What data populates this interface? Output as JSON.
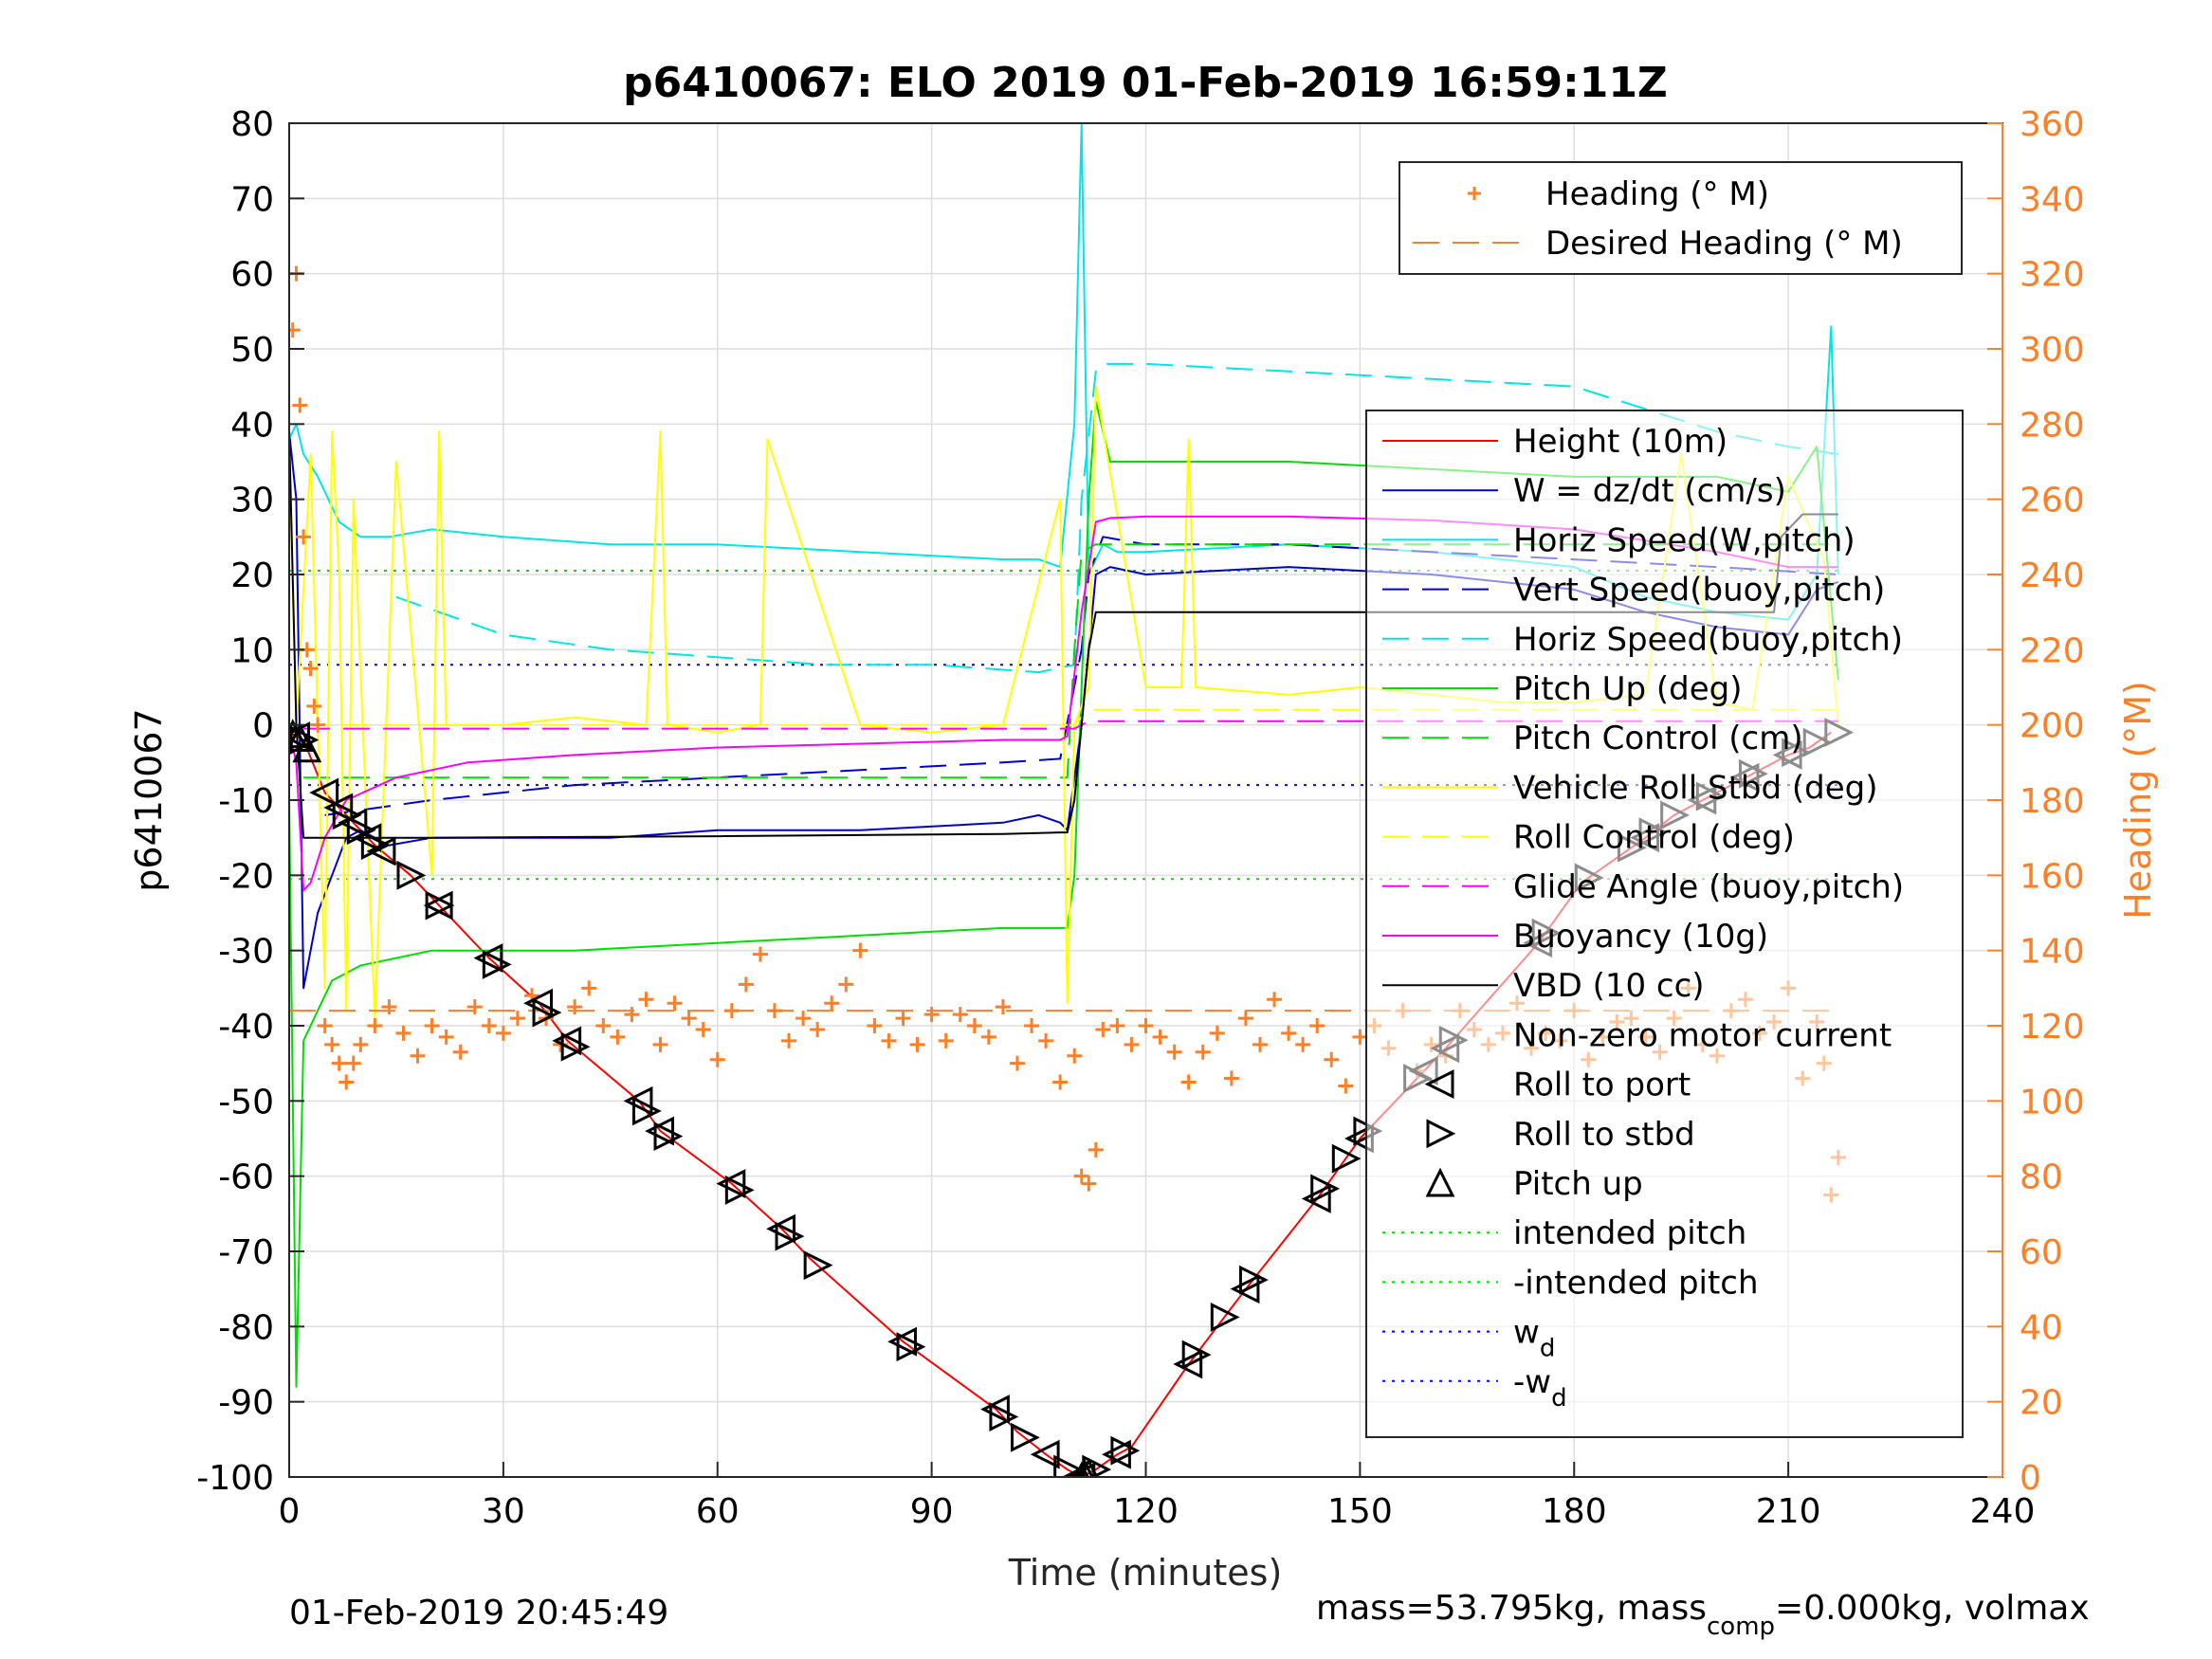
{
  "chart_data": {
    "type": "line",
    "title": "p6410067: ELO 2019 01-Feb-2019 16:59:11Z",
    "xlabel": "Time (minutes)",
    "ylabel": "p6410067",
    "y2label": "Heading (°M)",
    "xlim": [
      0,
      240
    ],
    "ylim": [
      -100,
      80
    ],
    "y2lim": [
      0,
      360
    ],
    "xticks": [
      0,
      30,
      60,
      90,
      120,
      150,
      180,
      210,
      240
    ],
    "yticks": [
      80,
      70,
      60,
      50,
      40,
      30,
      20,
      10,
      0,
      -10,
      -20,
      -30,
      -40,
      -50,
      -60,
      -70,
      -80,
      -90,
      -100
    ],
    "y2ticks": [
      360,
      340,
      320,
      300,
      280,
      260,
      240,
      220,
      200,
      180,
      160,
      140,
      120,
      100,
      80,
      60,
      40,
      20,
      0
    ],
    "grid": true,
    "footer_left": "01-Feb-2019 20:45:49",
    "footer_right": {
      "pre": "mass=53.795kg, mass",
      "sub": "comp",
      "post": "=0.000kg, volmax"
    },
    "legend_heading": [
      {
        "label": "Heading (° M)",
        "color": "#ff7f27",
        "style": "plus"
      },
      {
        "label": "Desired Heading (° M)",
        "color": "#ff7f27",
        "style": "dashed"
      }
    ],
    "legend_main": [
      {
        "label": "Height (10m)",
        "color": "#ff0000",
        "style": "solid"
      },
      {
        "label": "W = dz/dt (cm/s)",
        "color": "#0000cc",
        "style": "solid"
      },
      {
        "label": "Horiz Speed(W,pitch)",
        "color": "#00e5e5",
        "style": "solid"
      },
      {
        "label": "Vert Speed(buoy,pitch)",
        "color": "#0000cc",
        "style": "dashed"
      },
      {
        "label": "Horiz Speed(buoy,pitch)",
        "color": "#00e5e5",
        "style": "dashed"
      },
      {
        "label": "Pitch Up (deg)",
        "color": "#00dd00",
        "style": "solid"
      },
      {
        "label": "Pitch Control (cm)",
        "color": "#00dd00",
        "style": "dashed"
      },
      {
        "label": "Vehicle Roll Stbd (deg)",
        "color": "#ffff00",
        "style": "solid"
      },
      {
        "label": "Roll Control (deg)",
        "color": "#ffff00",
        "style": "dashed"
      },
      {
        "label": "Glide Angle (buoy,pitch)",
        "color": "#ff00ff",
        "style": "dashed"
      },
      {
        "label": "Buoyancy (10g)",
        "color": "#ff00ff",
        "style": "solid"
      },
      {
        "label": "VBD (10 cc)",
        "color": "#000000",
        "style": "solid"
      },
      {
        "label": "Non-zero motor current",
        "color": "#000000",
        "style": "none"
      },
      {
        "label": "Roll to port",
        "color": "#000000",
        "style": "tri-left"
      },
      {
        "label": "Roll to stbd",
        "color": "#000000",
        "style": "tri-right"
      },
      {
        "label": "Pitch up",
        "color": "#000000",
        "style": "tri-up"
      },
      {
        "label": "intended pitch",
        "color": "#00dd00",
        "style": "dotted"
      },
      {
        "label": "-intended pitch",
        "color": "#00dd00",
        "style": "dotted"
      },
      {
        "label": "w",
        "sub": "d",
        "color": "#0000ff",
        "style": "dotted"
      },
      {
        "label": "-w",
        "sub": "d",
        "color": "#0000ff",
        "style": "dotted"
      }
    ],
    "reference_lines": {
      "intended_pitch": 20.5,
      "neg_intended_pitch": -20.5,
      "w_d": 8,
      "neg_w_d": -8,
      "desired_heading": 124
    },
    "series": [
      {
        "name": "Height (10m)",
        "color": "#ff0000",
        "x": [
          0,
          2,
          5,
          8,
          12,
          17,
          21,
          28,
          35,
          39,
          49,
          52,
          62,
          69,
          73,
          86,
          99,
          102,
          106,
          109,
          111,
          113,
          116,
          118,
          126,
          130,
          134,
          144,
          147,
          150,
          158,
          162,
          175,
          181,
          187,
          190,
          194,
          198,
          200,
          204,
          210,
          213,
          216
        ],
        "y": [
          -1,
          -2,
          -9,
          -12,
          -16,
          -20,
          -24,
          -31,
          -37,
          -42,
          -50,
          -54,
          -61,
          -67,
          -71,
          -82,
          -91,
          -94,
          -97,
          -99,
          -100,
          -99,
          -97,
          -96,
          -85,
          -80,
          -75,
          -63,
          -59,
          -55,
          -47,
          -43,
          -29,
          -21,
          -17,
          -15,
          -12,
          -10,
          -9,
          -7,
          -4,
          -3,
          -1
        ]
      },
      {
        "name": "W = dz/dt (cm/s)",
        "color": "#0000cc",
        "x": [
          0,
          1,
          2,
          4,
          6,
          8,
          10,
          14,
          20,
          30,
          45,
          60,
          80,
          100,
          105,
          108,
          109,
          111,
          113,
          115,
          120,
          140,
          160,
          180,
          190,
          200,
          210,
          214,
          217
        ],
        "y": [
          39,
          30,
          -35,
          -25,
          -20,
          -15,
          -14,
          -16,
          -15,
          -15,
          -15,
          -14,
          -14,
          -13,
          -12,
          -13,
          -14,
          0,
          20,
          21,
          20,
          21,
          20,
          18,
          15,
          13,
          12,
          18,
          19
        ]
      },
      {
        "name": "Horiz Speed(W,pitch)",
        "color": "#00e5e5",
        "x": [
          0,
          1,
          2,
          4,
          7,
          10,
          14,
          20,
          30,
          45,
          60,
          80,
          100,
          105,
          108,
          110,
          111,
          112,
          114,
          116,
          120,
          140,
          160,
          180,
          190,
          200,
          210,
          214,
          216,
          217
        ],
        "y": [
          38,
          40,
          36,
          33,
          27,
          25,
          25,
          26,
          25,
          24,
          24,
          23,
          22,
          22,
          21,
          40,
          80,
          20,
          24,
          23,
          23,
          24,
          23,
          21,
          17,
          15,
          14,
          20,
          53,
          20
        ]
      },
      {
        "name": "Vert Speed(buoy,pitch)",
        "color": "#0000cc",
        "dashed": true,
        "x": [
          5,
          20,
          40,
          60,
          80,
          100,
          108,
          111,
          112,
          114,
          120,
          140,
          160,
          180,
          200,
          217
        ],
        "y": [
          -12,
          -10,
          -8,
          -7,
          -6,
          -5,
          -4.5,
          10,
          20,
          25,
          24,
          24,
          23,
          22,
          21,
          20
        ]
      },
      {
        "name": "Horiz Speed(buoy,pitch)",
        "color": "#00e5e5",
        "dashed": true,
        "x": [
          15,
          30,
          45,
          60,
          75,
          90,
          105,
          110,
          111,
          113,
          114,
          120,
          140,
          160,
          180,
          190,
          200,
          210,
          217
        ],
        "y": [
          17,
          12,
          10,
          9,
          8,
          8,
          7,
          8,
          30,
          47,
          48,
          48,
          47,
          46,
          45,
          42,
          39,
          37,
          36
        ]
      },
      {
        "name": "Pitch Up (deg)",
        "color": "#00dd00",
        "x": [
          0,
          1,
          2,
          4,
          6,
          10,
          20,
          40,
          60,
          80,
          100,
          108,
          109,
          110,
          112,
          113,
          115,
          120,
          140,
          160,
          180,
          200,
          210,
          214,
          217
        ],
        "y": [
          -10,
          -88,
          -42,
          -38,
          -34,
          -32,
          -30,
          -30,
          -29,
          -28,
          -27,
          -27,
          -27,
          -20,
          30,
          43,
          35,
          35,
          35,
          34,
          33,
          33,
          31,
          37,
          6
        ]
      },
      {
        "name": "Pitch Control (cm)",
        "color": "#00dd00",
        "dashed": true,
        "x": [
          2,
          20,
          40,
          60,
          80,
          100,
          109,
          110,
          111,
          113,
          120,
          160,
          200,
          217
        ],
        "y": [
          -7,
          -7,
          -7,
          -7,
          -7,
          -7,
          -7,
          10,
          23,
          24,
          24,
          24,
          24,
          24
        ]
      },
      {
        "name": "Vehicle Roll Stbd (deg)",
        "color": "#ffff00",
        "x": [
          0,
          1,
          3,
          5,
          6,
          7,
          8,
          9,
          12,
          15,
          20,
          21,
          22,
          30,
          40,
          50,
          52,
          53,
          60,
          66,
          67,
          80,
          90,
          100,
          108,
          109,
          110,
          112,
          113,
          120,
          125,
          126,
          127,
          140,
          150,
          160,
          170,
          180,
          190,
          195,
          200,
          205,
          210,
          215,
          217
        ],
        "y": [
          38,
          0,
          36,
          -35,
          39,
          20,
          -38,
          30,
          -39,
          35,
          -20,
          39,
          0,
          0,
          1,
          0,
          39,
          0,
          -1,
          0,
          38,
          0,
          -1,
          0,
          30,
          -37,
          0,
          5,
          45,
          5,
          5,
          38,
          5,
          4,
          5,
          4,
          3,
          3,
          4,
          36,
          3,
          2,
          33,
          22,
          0
        ]
      },
      {
        "name": "Roll Control (deg)",
        "color": "#ffff00",
        "dashed": true,
        "x": [
          2,
          60,
          110,
          112,
          217
        ],
        "y": [
          0,
          0,
          0,
          2,
          2
        ]
      },
      {
        "name": "Glide Angle (buoy,pitch)",
        "color": "#ff00ff",
        "dashed": true,
        "x": [
          2,
          60,
          110,
          112,
          217
        ],
        "y": [
          -0.5,
          -0.5,
          -0.5,
          0.5,
          0.5
        ]
      },
      {
        "name": "Buoyancy (10g)",
        "color": "#ff00ff",
        "x": [
          0,
          1,
          2,
          3,
          5,
          8,
          15,
          25,
          40,
          60,
          80,
          100,
          108,
          109,
          111,
          113,
          115,
          120,
          140,
          160,
          180,
          200,
          210,
          217
        ],
        "y": [
          -1,
          -5,
          -22,
          -21,
          -15,
          -10,
          -7,
          -5,
          -4,
          -3,
          -2.5,
          -2,
          -2,
          -1.5,
          15,
          27,
          27.5,
          27.7,
          27.7,
          27.2,
          26,
          23,
          21,
          21
        ]
      },
      {
        "name": "VBD (10 cc)",
        "color": "#000000",
        "x": [
          0,
          1,
          2,
          20,
          60,
          100,
          108,
          109,
          110,
          112,
          113,
          114,
          120,
          160,
          190,
          200,
          208,
          209,
          212,
          216,
          217
        ],
        "y": [
          39,
          0,
          -15,
          -15,
          -14.8,
          -14.5,
          -14.3,
          -14.3,
          -10,
          10,
          15,
          15,
          15,
          15,
          15,
          15,
          15,
          25,
          28,
          28,
          28
        ]
      },
      {
        "name": "Heading (° M)",
        "color": "#ff7f27",
        "axis": "right",
        "marker": "plus",
        "x": [
          0.5,
          1,
          1.5,
          2,
          2.5,
          3,
          3.5,
          4,
          5,
          6,
          7,
          8,
          9,
          10,
          12,
          14,
          16,
          18,
          20,
          22,
          24,
          26,
          28,
          30,
          32,
          34,
          36,
          38,
          40,
          42,
          44,
          46,
          48,
          50,
          52,
          54,
          56,
          58,
          60,
          62,
          64,
          66,
          68,
          70,
          72,
          74,
          76,
          78,
          80,
          82,
          84,
          86,
          88,
          90,
          92,
          94,
          96,
          98,
          100,
          102,
          104,
          106,
          108,
          110,
          111,
          112,
          113,
          114,
          116,
          118,
          120,
          122,
          124,
          126,
          128,
          130,
          132,
          134,
          136,
          138,
          140,
          142,
          144,
          146,
          148,
          150,
          152,
          154,
          156,
          158,
          160,
          162,
          164,
          166,
          168,
          170,
          172,
          174,
          176,
          178,
          180,
          182,
          184,
          186,
          188,
          190,
          192,
          194,
          196,
          198,
          200,
          202,
          204,
          206,
          208,
          210,
          212,
          214,
          215,
          216,
          217
        ],
        "y": [
          305,
          320,
          285,
          250,
          220,
          215,
          205,
          200,
          120,
          115,
          110,
          105,
          110,
          115,
          120,
          125,
          118,
          112,
          120,
          117,
          113,
          125,
          120,
          118,
          122,
          128,
          122,
          115,
          125,
          130,
          120,
          117,
          123,
          127,
          115,
          126,
          122,
          119,
          111,
          124,
          131,
          139,
          124,
          116,
          122,
          119,
          126,
          131,
          140,
          120,
          116,
          122,
          115,
          123,
          116,
          123,
          120,
          117,
          125,
          110,
          120,
          116,
          105,
          112,
          80,
          78,
          87,
          119,
          120,
          115,
          120,
          117,
          113,
          105,
          113,
          118,
          106,
          122,
          115,
          127,
          118,
          115,
          120,
          111,
          104,
          117,
          120,
          114,
          124,
          108,
          115,
          112,
          124,
          119,
          115,
          118,
          126,
          114,
          118,
          116,
          124,
          111,
          117,
          121,
          122,
          117,
          113,
          122,
          130,
          115,
          112,
          124,
          127,
          118,
          121,
          130,
          106,
          121,
          110,
          75,
          85
        ]
      },
      {
        "name": "Desired Heading (° M)",
        "color": "#ff7f27",
        "axis": "right",
        "dashed": true,
        "x": [
          0,
          217
        ],
        "y": [
          124,
          124
        ]
      }
    ],
    "markers": {
      "roll_to_port": [
        1,
        5,
        7,
        9,
        11,
        13,
        21,
        28,
        35,
        39,
        49,
        52,
        62,
        69,
        86,
        99,
        106,
        111,
        116,
        126,
        134,
        144,
        150,
        159,
        162,
        175,
        190,
        198,
        204,
        210
      ],
      "roll_to_stbd": [
        2,
        8,
        10,
        12,
        17,
        21,
        29,
        36,
        40,
        50,
        53,
        63,
        70,
        74,
        87,
        100,
        103,
        109,
        113,
        117,
        127,
        131,
        135,
        145,
        148,
        151,
        158,
        163,
        176,
        182,
        188,
        191,
        194,
        199,
        205,
        211,
        214,
        217
      ],
      "pitch_up": [
        0.5,
        1.5,
        2.5,
        111,
        111.5,
        112
      ]
    }
  }
}
